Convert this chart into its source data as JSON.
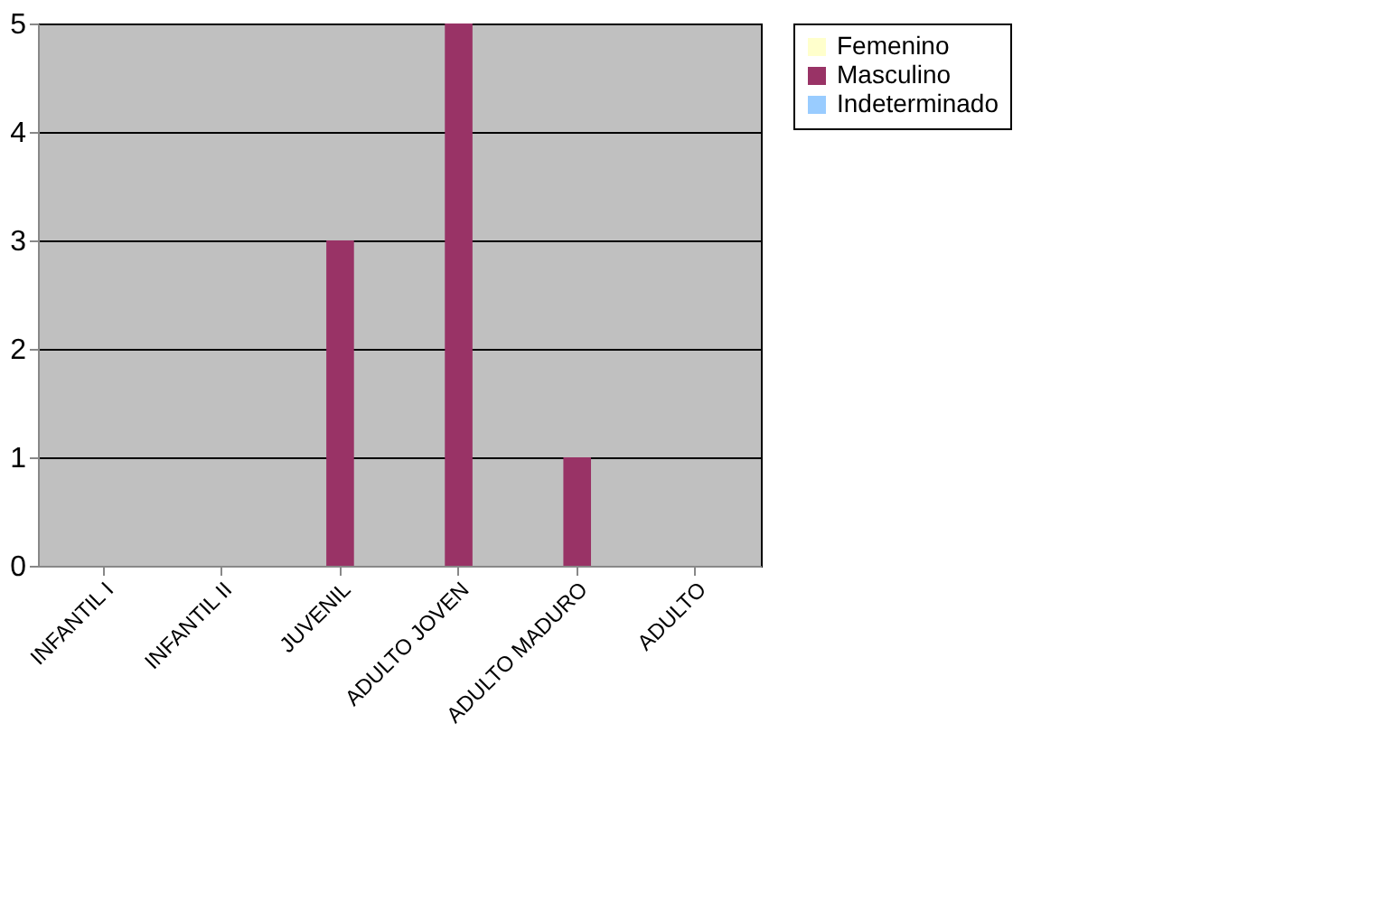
{
  "chart_data": {
    "type": "bar",
    "categories": [
      "INFANTIL I",
      "INFANTIL II",
      "JUVENIL",
      "ADULTO JOVEN",
      "ADULTO MADURO",
      "ADULTO"
    ],
    "series": [
      {
        "name": "Femenino",
        "color": "#ffffcc",
        "values": [
          0,
          0,
          0,
          0,
          0,
          0
        ]
      },
      {
        "name": "Masculino",
        "color": "#993366",
        "values": [
          0,
          0,
          3,
          5,
          1,
          0
        ]
      },
      {
        "name": "Indeterminado",
        "color": "#99ccff",
        "values": [
          0,
          0,
          0,
          0,
          0,
          0
        ]
      }
    ],
    "ylim": [
      0,
      5
    ],
    "yticks": [
      0,
      1,
      2,
      3,
      4,
      5
    ],
    "grid": "y",
    "legend": "right"
  }
}
